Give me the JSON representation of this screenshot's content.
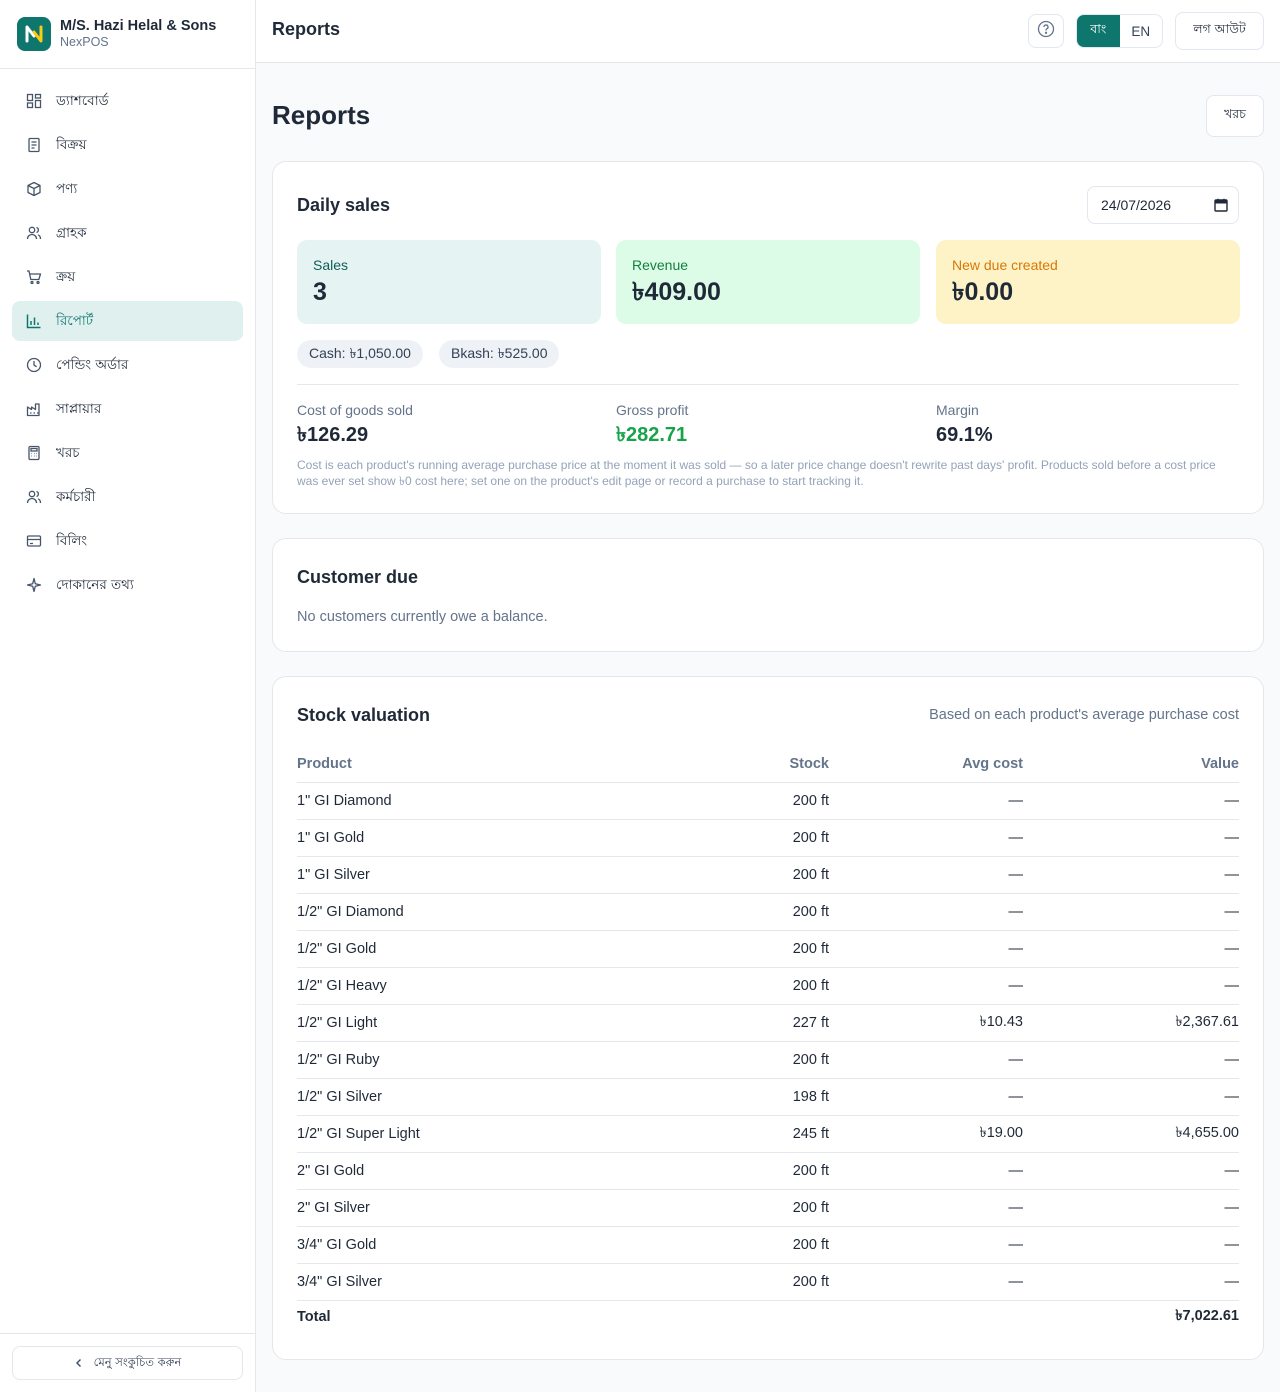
{
  "brand": {
    "name": "M/S. Hazi Helal & Sons",
    "product": "NexPOS"
  },
  "sidebar": {
    "items": [
      {
        "label": "ড্যাশবোর্ড",
        "icon": "dashboard-icon"
      },
      {
        "label": "বিক্রয়",
        "icon": "receipt-icon"
      },
      {
        "label": "পণ্য",
        "icon": "box-icon"
      },
      {
        "label": "গ্রাহক",
        "icon": "users-icon"
      },
      {
        "label": "ক্রয়",
        "icon": "cart-icon"
      },
      {
        "label": "রিপোর্ট",
        "icon": "bar-chart-icon",
        "active": true
      },
      {
        "label": "পেন্ডিং অর্ডার",
        "icon": "clock-icon"
      },
      {
        "label": "সাপ্লায়ার",
        "icon": "factory-icon"
      },
      {
        "label": "খরচ",
        "icon": "calculator-icon"
      },
      {
        "label": "কর্মচারী",
        "icon": "users-icon"
      },
      {
        "label": "বিলিং",
        "icon": "credit-card-icon"
      },
      {
        "label": "দোকানের তথ্য",
        "icon": "sparkle-icon"
      }
    ],
    "collapse_label": "মেনু সংকুচিত করুন"
  },
  "topbar": {
    "title": "Reports",
    "lang_bn": "বাং",
    "lang_en": "EN",
    "logout_label": "লগ আউট"
  },
  "page": {
    "title": "Reports",
    "expense_button": "খরচ"
  },
  "daily_sales": {
    "title": "Daily sales",
    "date": "24/07/2026",
    "sales_label": "Sales",
    "sales_value": "3",
    "revenue_label": "Revenue",
    "revenue_value": "৳409.00",
    "due_label": "New due created",
    "due_value": "৳0.00",
    "cash_chip": "Cash: ৳1,050.00",
    "bkash_chip": "Bkash: ৳525.00",
    "cogs_label": "Cost of goods sold",
    "cogs_value": "৳126.29",
    "profit_label": "Gross profit",
    "profit_value": "৳282.71",
    "margin_label": "Margin",
    "margin_value": "69.1%",
    "footnote": "Cost is each product's running average purchase price at the moment it was sold — so a later price change doesn't rewrite past days' profit. Products sold before a cost price was ever set show ৳0 cost here; set one on the product's edit page or record a purchase to start tracking it."
  },
  "customer_due": {
    "title": "Customer due",
    "empty_text": "No customers currently owe a balance."
  },
  "stock_valuation": {
    "title": "Stock valuation",
    "subtitle": "Based on each product's average purchase cost",
    "columns": {
      "product": "Product",
      "stock": "Stock",
      "avg_cost": "Avg cost",
      "value": "Value"
    },
    "rows": [
      {
        "product": "1\" GI Diamond",
        "stock": "200 ft",
        "avg_cost": "—",
        "value": "—"
      },
      {
        "product": "1\" GI Gold",
        "stock": "200 ft",
        "avg_cost": "—",
        "value": "—"
      },
      {
        "product": "1\" GI Silver",
        "stock": "200 ft",
        "avg_cost": "—",
        "value": "—"
      },
      {
        "product": "1/2\" GI Diamond",
        "stock": "200 ft",
        "avg_cost": "—",
        "value": "—"
      },
      {
        "product": "1/2\" GI Gold",
        "stock": "200 ft",
        "avg_cost": "—",
        "value": "—"
      },
      {
        "product": "1/2\" GI Heavy",
        "stock": "200 ft",
        "avg_cost": "—",
        "value": "—"
      },
      {
        "product": "1/2\" GI Light",
        "stock": "227 ft",
        "avg_cost": "৳10.43",
        "value": "৳2,367.61"
      },
      {
        "product": "1/2\" GI Ruby",
        "stock": "200 ft",
        "avg_cost": "—",
        "value": "—"
      },
      {
        "product": "1/2\" GI Silver",
        "stock": "198 ft",
        "avg_cost": "—",
        "value": "—"
      },
      {
        "product": "1/2\" GI Super Light",
        "stock": "245 ft",
        "avg_cost": "৳19.00",
        "value": "৳4,655.00"
      },
      {
        "product": "2\" GI Gold",
        "stock": "200 ft",
        "avg_cost": "—",
        "value": "—"
      },
      {
        "product": "2\" GI Silver",
        "stock": "200 ft",
        "avg_cost": "—",
        "value": "—"
      },
      {
        "product": "3/4\" GI Gold",
        "stock": "200 ft",
        "avg_cost": "—",
        "value": "—"
      },
      {
        "product": "3/4\" GI Silver",
        "stock": "200 ft",
        "avg_cost": "—",
        "value": "—"
      }
    ],
    "total_label": "Total",
    "total_value": "৳7,022.61"
  },
  "colors": {
    "accent": "#0f766e",
    "active_bg": "#dff0ee",
    "profit": "#16a34a",
    "due": "#d97706"
  }
}
